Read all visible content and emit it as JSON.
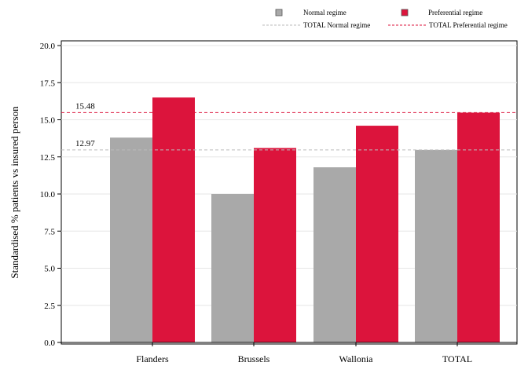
{
  "chart_data": {
    "type": "bar",
    "title": "",
    "xlabel": "",
    "ylabel": "Standardised % patients vs insured person",
    "categories": [
      "Flanders",
      "Brussels",
      "Wallonia",
      "TOTAL"
    ],
    "series": [
      {
        "name": "Normal regime",
        "values": [
          13.8,
          10.0,
          11.8,
          12.97
        ],
        "color": "#a9a9a9"
      },
      {
        "name": "Preferential regime",
        "values": [
          16.5,
          13.1,
          14.6,
          15.48
        ],
        "color": "#dc143c"
      }
    ],
    "reference_lines": [
      {
        "name": "TOTAL Normal regime",
        "value": 12.97,
        "label": "12.97",
        "color": "#a9a9a9",
        "style": "dashed"
      },
      {
        "name": "TOTAL Preferential regime",
        "value": 15.48,
        "label": "15.48",
        "color": "#dc143c",
        "style": "dashed"
      }
    ],
    "ylim": [
      0,
      20
    ],
    "yticks": [
      "0.0",
      "2.5",
      "5.0",
      "7.5",
      "10.0",
      "12.5",
      "15.0",
      "17.5",
      "20.0"
    ],
    "ytick_values": [
      0,
      2.5,
      5,
      7.5,
      10,
      12.5,
      15,
      17.5,
      20
    ],
    "grid": true,
    "legend_position": "top"
  }
}
